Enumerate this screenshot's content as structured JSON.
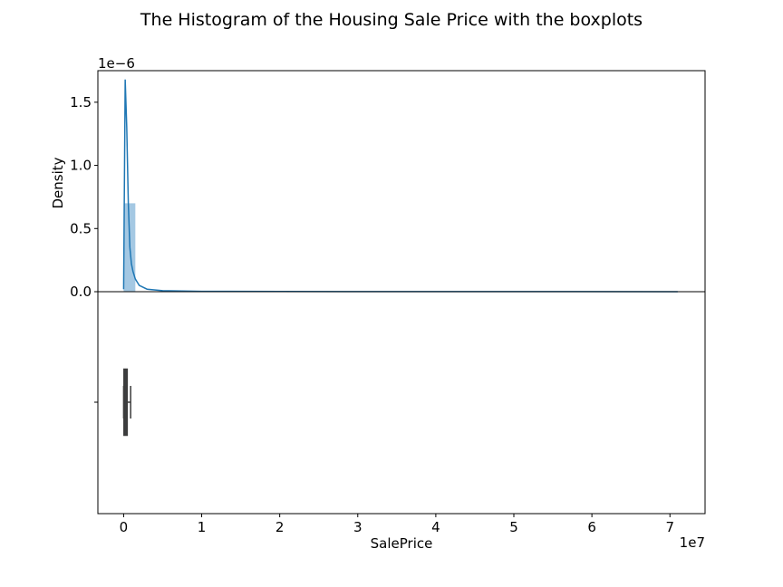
{
  "title": "The Histogram of the Housing Sale Price with the boxplots",
  "chart_data": [
    {
      "type": "bar",
      "subtype": "histogram-with-kde",
      "panel": "top",
      "ylabel": "Density",
      "y_offset_label": "1e−6",
      "y_scale": 1e-06,
      "ylim": [
        0,
        1.75
      ],
      "yticks": [
        0.0,
        0.5,
        1.0,
        1.5
      ],
      "ytick_labels": [
        "0.0",
        "0.5",
        "1.0",
        "1.5"
      ],
      "xlim": [
        -0.33,
        7.45
      ],
      "x_scale": 10000000.0,
      "bar_color": "#9fc5e1",
      "line_color": "#1f77b4",
      "bins": [
        {
          "x0": 0.0,
          "x1": 0.15,
          "density": 0.7
        }
      ],
      "kde": {
        "x": [
          0.0,
          0.02,
          0.04,
          0.06,
          0.08,
          0.1,
          0.12,
          0.15,
          0.2,
          0.3,
          0.5,
          1.0,
          2.0,
          4.0,
          7.1
        ],
        "y": [
          0.02,
          1.68,
          1.3,
          0.7,
          0.35,
          0.22,
          0.16,
          0.1,
          0.05,
          0.02,
          0.008,
          0.003,
          0.0015,
          0.0008,
          0.0003
        ]
      },
      "grid": false
    },
    {
      "type": "boxplot",
      "panel": "bottom",
      "xlabel": "SalePrice",
      "x_offset_label": "1e7",
      "xlim": [
        -0.33,
        7.45
      ],
      "xticks": [
        0,
        1,
        2,
        3,
        4,
        5,
        6,
        7
      ],
      "xtick_labels": [
        "0",
        "1",
        "2",
        "3",
        "4",
        "5",
        "6",
        "7"
      ],
      "ytick_labels": [
        ""
      ],
      "box": {
        "whisker_low": 0.0,
        "q1": 0.01,
        "median": 0.02,
        "q3": 0.04,
        "whisker_high": 0.09
      },
      "box_color": "#3d3d3d",
      "grid": false
    }
  ]
}
